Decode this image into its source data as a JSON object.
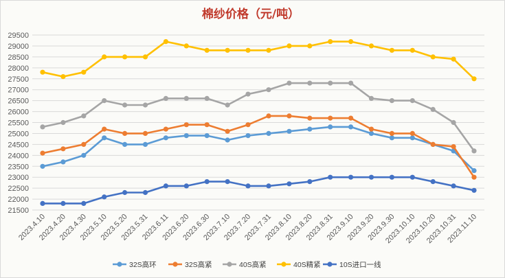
{
  "chart_data": {
    "type": "line",
    "title": "棉纱价格（元/吨）",
    "xlabel": "",
    "ylabel": "",
    "ylim": [
      21500,
      29500
    ],
    "ytick_step": 500,
    "grid": true,
    "legend_position": "bottom",
    "categories": [
      "2023.4.10",
      "2023.4.20",
      "2023.4.30",
      "2023.5.10",
      "2023.5.20",
      "2023.5.31",
      "2023.6.11",
      "2023.6.20",
      "2023.6.30",
      "2023.7.10",
      "2023.7.20",
      "2023.7.31",
      "2023.8.10",
      "2023.8.20",
      "2023.8.31",
      "2023.9.10",
      "2023.9.20",
      "2023.9.30",
      "2023.10.10",
      "2023.10.20",
      "2023.10.31",
      "2023.11.10"
    ],
    "series": [
      {
        "name": "32S高环",
        "color": "#5b9bd5",
        "values": [
          23500,
          23700,
          24000,
          24800,
          24500,
          24500,
          24800,
          24900,
          24900,
          24700,
          24900,
          25000,
          25100,
          25200,
          25300,
          25300,
          25000,
          24800,
          24800,
          24500,
          24200,
          23300
        ]
      },
      {
        "name": "32S高紧",
        "color": "#ed7d31",
        "values": [
          24100,
          24300,
          24500,
          25200,
          25000,
          25000,
          25200,
          25400,
          25400,
          25100,
          25400,
          25800,
          25800,
          25700,
          25700,
          25700,
          25200,
          25000,
          25000,
          24500,
          24400,
          23000
        ]
      },
      {
        "name": "40S高紧",
        "color": "#a5a5a5",
        "values": [
          25300,
          25500,
          25800,
          26500,
          26300,
          26300,
          26600,
          26600,
          26600,
          26300,
          26800,
          27000,
          27300,
          27300,
          27300,
          27300,
          26600,
          26500,
          26500,
          26100,
          25500,
          24200
        ]
      },
      {
        "name": "40S精紧",
        "color": "#ffc000",
        "values": [
          27800,
          27600,
          27800,
          28500,
          28500,
          28500,
          29200,
          29000,
          28800,
          28800,
          28800,
          28800,
          29000,
          29000,
          29200,
          29200,
          29000,
          28800,
          28800,
          28500,
          28400,
          27500
        ]
      },
      {
        "name": "10S进口一线",
        "color": "#4472c4",
        "values": [
          21800,
          21800,
          21800,
          22100,
          22300,
          22300,
          22600,
          22600,
          22800,
          22800,
          22600,
          22600,
          22700,
          22800,
          23000,
          23000,
          23000,
          23000,
          23000,
          22800,
          22600,
          22400
        ]
      }
    ]
  }
}
